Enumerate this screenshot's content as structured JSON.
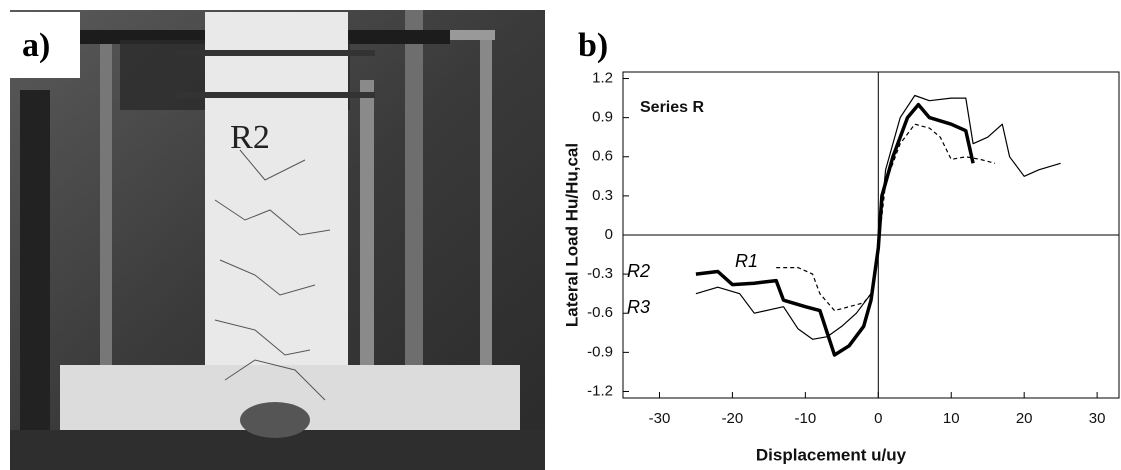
{
  "photo": {
    "panel_label": "a)",
    "specimen_label": "R2"
  },
  "chart_data": {
    "type": "line",
    "panel_label": "b)",
    "annotation": "Series R",
    "xlabel": "Displacement u/uy",
    "ylabel": "Lateral Load Hu/Hu,cal",
    "xlim": [
      -35,
      33
    ],
    "ylim": [
      -1.25,
      1.25
    ],
    "xticks": [
      -30,
      -20,
      -10,
      0,
      10,
      20,
      30
    ],
    "yticks": [
      1.2,
      0.9,
      0.6,
      0.3,
      0,
      -0.3,
      -0.6,
      -0.9,
      -1.2
    ],
    "grid": false,
    "series": [
      {
        "name": "R1",
        "color": "#000000",
        "dash": true,
        "width": 1.2,
        "x": [
          -14,
          -11,
          -9,
          -8,
          -6,
          -4,
          -2,
          -1,
          0,
          1,
          3,
          5,
          7,
          8.5,
          10,
          12,
          14,
          16
        ],
        "values": [
          -0.25,
          -0.25,
          -0.3,
          -0.45,
          -0.58,
          -0.55,
          -0.52,
          -0.45,
          -0.1,
          0.4,
          0.7,
          0.85,
          0.82,
          0.75,
          0.58,
          0.6,
          0.58,
          0.55
        ]
      },
      {
        "name": "R2",
        "color": "#000000",
        "dash": false,
        "width": 3.5,
        "x": [
          -25,
          -22,
          -20,
          -17,
          -14,
          -13,
          -10,
          -8,
          -7,
          -6,
          -4,
          -2,
          -1,
          0,
          0.5,
          2,
          4,
          5.5,
          7,
          10,
          12,
          13
        ],
        "values": [
          -0.3,
          -0.28,
          -0.38,
          -0.37,
          -0.35,
          -0.5,
          -0.55,
          -0.58,
          -0.75,
          -0.92,
          -0.85,
          -0.7,
          -0.5,
          -0.1,
          0.3,
          0.6,
          0.9,
          1.0,
          0.9,
          0.85,
          0.8,
          0.55
        ]
      },
      {
        "name": "R3",
        "color": "#000000",
        "dash": false,
        "width": 1.2,
        "x": [
          -25,
          -22,
          -19,
          -17,
          -13,
          -11,
          -9,
          -7,
          -5,
          -3,
          -1,
          0,
          1,
          3,
          5,
          7,
          10,
          12,
          13,
          15,
          17,
          18,
          20,
          22,
          25
        ],
        "values": [
          -0.45,
          -0.4,
          -0.45,
          -0.6,
          -0.55,
          -0.72,
          -0.8,
          -0.78,
          -0.7,
          -0.6,
          -0.45,
          -0.1,
          0.5,
          0.9,
          1.07,
          1.03,
          1.05,
          1.05,
          0.7,
          0.75,
          0.85,
          0.6,
          0.45,
          0.5,
          0.55
        ]
      }
    ]
  }
}
